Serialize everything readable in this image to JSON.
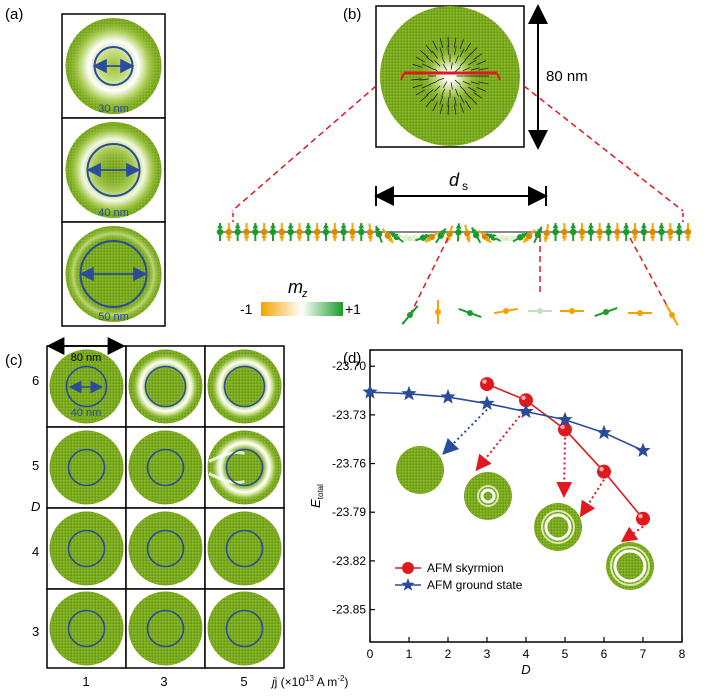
{
  "panels": {
    "a": {
      "label": "(a)",
      "diameters": [
        "30 nm",
        "40 nm",
        "50 nm"
      ]
    },
    "b": {
      "label": "(b)",
      "size_label": "80 nm",
      "ds_main": "d",
      "ds_sub": "s"
    },
    "colorbar": {
      "title_main": "m",
      "title_sub": "z",
      "min_label": "-1",
      "max_label": "+1"
    },
    "c": {
      "label": "(c)",
      "top_label": "80 nm",
      "inner_label": "40 nm",
      "row_axis": "D",
      "rows": [
        "6",
        "5",
        "4",
        "3"
      ],
      "cols": [
        "1",
        "3",
        "5"
      ],
      "col_axis": "j (×10",
      "col_axis_exp": "13",
      "col_axis_unit": " A m",
      "col_axis_unit_exp": "-2",
      "col_axis_close": ")"
    },
    "d": {
      "label": "(d)"
    }
  },
  "chart_data": {
    "type": "line",
    "xlabel": "D",
    "ylabel_main": "E",
    "ylabel_sub": "total",
    "xlim": [
      0,
      8
    ],
    "ylim": [
      -23.87,
      -23.69
    ],
    "xticks": [
      "0",
      "1",
      "2",
      "3",
      "4",
      "5",
      "6",
      "7",
      "8"
    ],
    "yticks": [
      "-23.70",
      "-23.73",
      "-23.76",
      "-23.79",
      "-23.82",
      "-23.85"
    ],
    "series": [
      {
        "name": "AFM skyrmion",
        "color": "#e0191f",
        "marker": "sphere",
        "x": [
          3,
          4,
          5,
          6,
          7
        ],
        "y": [
          -23.711,
          -23.721,
          -23.739,
          -23.765,
          -23.794
        ]
      },
      {
        "name": "AFM ground state",
        "color": "#2b4c9b",
        "marker": "star",
        "x": [
          0,
          1,
          2,
          3,
          4,
          5,
          6,
          7
        ],
        "y": [
          -23.716,
          -23.717,
          -23.719,
          -23.723,
          -23.728,
          -23.733,
          -23.741,
          -23.752
        ]
      }
    ],
    "legend": "lower-left"
  }
}
